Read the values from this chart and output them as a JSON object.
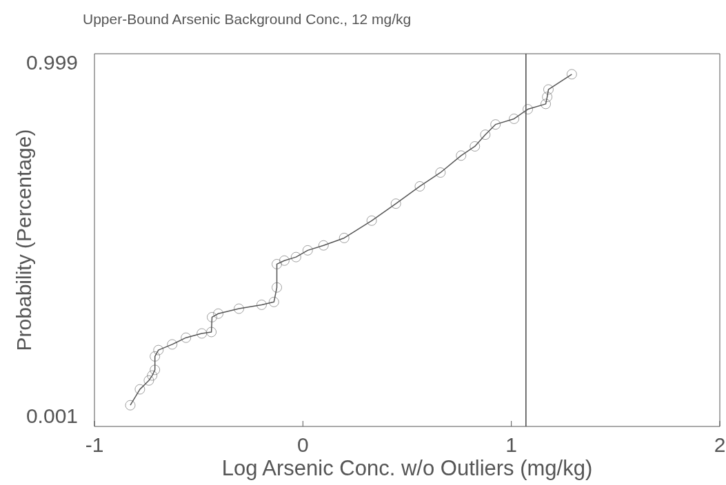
{
  "chart_data": {
    "type": "line",
    "title": "Upper-Bound Arsenic Background Conc., 12 mg/kg",
    "xlabel": "Log Arsenic Conc. w/o Outliers (mg/kg)",
    "ylabel": "Probability (Percentage)",
    "x": [
      -0.828,
      -0.782,
      -0.739,
      -0.723,
      -0.71,
      -0.71,
      -0.693,
      -0.627,
      -0.561,
      -0.485,
      -0.439,
      -0.436,
      -0.406,
      -0.307,
      -0.198,
      -0.139,
      -0.125,
      -0.125,
      -0.089,
      -0.033,
      0.023,
      0.099,
      0.198,
      0.33,
      0.446,
      0.561,
      0.66,
      0.759,
      0.825,
      0.875,
      0.924,
      1.013,
      1.079,
      1.165,
      1.172,
      1.178,
      1.29
    ],
    "series": [
      {
        "color": "#555555",
        "values": [
          0.03,
          0.075,
          0.1,
          0.114,
          0.13,
          0.168,
          0.186,
          0.202,
          0.221,
          0.233,
          0.237,
          0.279,
          0.289,
          0.303,
          0.314,
          0.322,
          0.363,
          0.429,
          0.439,
          0.449,
          0.468,
          0.482,
          0.503,
          0.552,
          0.6,
          0.649,
          0.688,
          0.736,
          0.762,
          0.795,
          0.824,
          0.84,
          0.867,
          0.882,
          0.902,
          0.923,
          0.966
        ]
      }
    ],
    "xlim": [
      -1,
      2
    ],
    "xticks": [
      -1,
      0,
      1,
      2
    ],
    "ylim": [
      -0.03,
      1.024
    ],
    "yticks": [
      0.001,
      0.999
    ],
    "marker": "circle",
    "line_style": "solid",
    "grid": false,
    "legend": false,
    "ref_lines": [
      {
        "axis": "x",
        "value": 1.07,
        "color": "#444444"
      }
    ]
  }
}
